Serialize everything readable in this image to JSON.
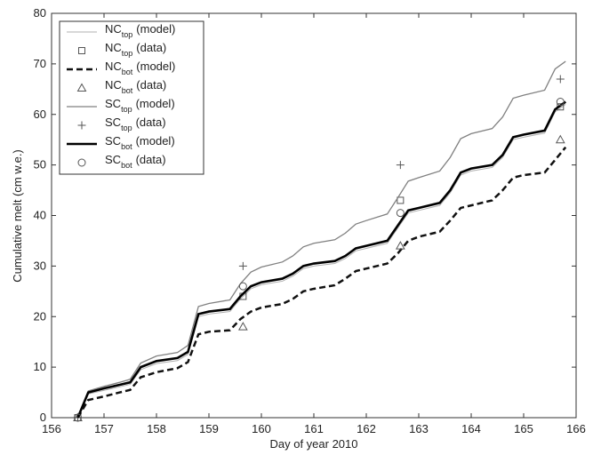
{
  "chart_data": {
    "type": "line",
    "x_label": "Day of year 2010",
    "y_label": "Cumulative melt (cm w.e.)",
    "xlim": [
      156,
      166
    ],
    "xticks": [
      156,
      157,
      158,
      159,
      160,
      161,
      162,
      163,
      164,
      165,
      166
    ],
    "ylim": [
      0,
      80
    ],
    "yticks": [
      0,
      10,
      20,
      30,
      40,
      50,
      60,
      70,
      80
    ],
    "grid": false,
    "legend": "upper left",
    "series": [
      {
        "name": "NC",
        "subscript": "top",
        "suffix": "(model)",
        "style": "line",
        "color": "#b0b0b0",
        "width": 1,
        "dash": false,
        "x": [
          156.5,
          156.7,
          157,
          157.3,
          157.5,
          157.7,
          158,
          158.4,
          158.6,
          158.8,
          159,
          159.4,
          159.6,
          159.8,
          160,
          160.4,
          160.6,
          160.8,
          161,
          161.4,
          161.6,
          161.8,
          162,
          162.4,
          162.6,
          162.8,
          163,
          163.4,
          163.6,
          163.8,
          164,
          164.4,
          164.6,
          164.8,
          165,
          165.4,
          165.6,
          165.8
        ],
        "values": [
          0,
          4.7,
          5.4,
          6.1,
          6.6,
          9.5,
          10.7,
          11.3,
          12.5,
          20,
          20.5,
          21,
          23.5,
          25.5,
          26.3,
          27,
          28,
          29.5,
          30,
          30.5,
          31.5,
          33,
          33.5,
          34.5,
          37.5,
          40.5,
          41,
          42,
          44.5,
          48,
          48.8,
          49.5,
          51.5,
          55,
          55.5,
          56.3,
          60.5,
          62
        ]
      },
      {
        "name": "NC",
        "subscript": "top",
        "suffix": "(data)",
        "style": "square",
        "color": "#555555",
        "x": [
          156.5,
          159.65,
          162.65,
          165.7
        ],
        "values": [
          0,
          24,
          43,
          61.5
        ]
      },
      {
        "name": "NC",
        "subscript": "bot",
        "suffix": "(model)",
        "style": "line",
        "color": "#111111",
        "width": 2.5,
        "dash": true,
        "x": [
          156.5,
          156.7,
          157,
          157.3,
          157.5,
          157.7,
          158,
          158.4,
          158.6,
          158.8,
          159,
          159.4,
          159.6,
          159.8,
          160,
          160.4,
          160.6,
          160.8,
          161,
          161.4,
          161.6,
          161.8,
          162,
          162.4,
          162.6,
          162.8,
          163,
          163.4,
          163.6,
          163.8,
          164,
          164.4,
          164.6,
          164.8,
          165,
          165.4,
          165.6,
          165.8
        ],
        "values": [
          0,
          3.5,
          4.2,
          5,
          5.5,
          8,
          9,
          9.8,
          11,
          16.5,
          17,
          17.3,
          19.5,
          21,
          21.8,
          22.5,
          23.5,
          25,
          25.5,
          26.2,
          27.5,
          29,
          29.5,
          30.5,
          32.5,
          35,
          35.8,
          36.8,
          39,
          41.5,
          42,
          43,
          45,
          47.5,
          48,
          48.5,
          51,
          53.5
        ]
      },
      {
        "name": "NC",
        "subscript": "bot",
        "suffix": "(data)",
        "style": "triangle",
        "color": "#555555",
        "x": [
          156.5,
          159.65,
          162.65,
          165.7
        ],
        "values": [
          0,
          18,
          34,
          55
        ]
      },
      {
        "name": "SC",
        "subscript": "top",
        "suffix": "(model)",
        "style": "line",
        "color": "#808080",
        "width": 1.3,
        "dash": false,
        "x": [
          156.5,
          156.7,
          157,
          157.3,
          157.5,
          157.7,
          158,
          158.4,
          158.6,
          158.8,
          159,
          159.4,
          159.6,
          159.8,
          160,
          160.4,
          160.6,
          160.8,
          161,
          161.4,
          161.6,
          161.8,
          162,
          162.4,
          162.6,
          162.8,
          163,
          163.4,
          163.6,
          163.8,
          164,
          164.4,
          164.6,
          164.8,
          165,
          165.4,
          165.6,
          165.8
        ],
        "values": [
          0,
          5.3,
          6.2,
          7,
          7.6,
          10.8,
          12.2,
          12.9,
          14.3,
          22,
          22.6,
          23.3,
          26.5,
          28.8,
          29.8,
          30.8,
          32,
          33.8,
          34.5,
          35.2,
          36.5,
          38.3,
          39,
          40.3,
          43.5,
          46.8,
          47.5,
          48.8,
          51.5,
          55.2,
          56.2,
          57.2,
          59.5,
          63.2,
          63.8,
          64.8,
          69,
          70.5
        ]
      },
      {
        "name": "SC",
        "subscript": "top",
        "suffix": "(data)",
        "style": "plus",
        "color": "#555555",
        "x": [
          156.5,
          159.65,
          162.65,
          165.7
        ],
        "values": [
          0,
          30,
          50,
          67
        ]
      },
      {
        "name": "SC",
        "subscript": "bot",
        "suffix": "(model)",
        "style": "line",
        "color": "#000000",
        "width": 2.6,
        "dash": false,
        "x": [
          156.5,
          156.7,
          157,
          157.3,
          157.5,
          157.7,
          158,
          158.4,
          158.6,
          158.8,
          159,
          159.4,
          159.6,
          159.8,
          160,
          160.4,
          160.6,
          160.8,
          161,
          161.4,
          161.6,
          161.8,
          162,
          162.4,
          162.6,
          162.8,
          163,
          163.4,
          163.6,
          163.8,
          164,
          164.4,
          164.6,
          164.8,
          165,
          165.4,
          165.6,
          165.8
        ],
        "values": [
          0,
          5,
          5.8,
          6.5,
          7,
          10,
          11.2,
          11.8,
          13,
          20.5,
          21,
          21.5,
          24,
          26,
          26.8,
          27.5,
          28.5,
          30,
          30.5,
          31,
          32,
          33.5,
          34,
          35,
          38,
          41,
          41.5,
          42.5,
          45,
          48.5,
          49.3,
          50,
          52,
          55.5,
          56,
          56.8,
          61,
          62.5
        ]
      },
      {
        "name": "SC",
        "subscript": "bot",
        "suffix": "(data)",
        "style": "circle",
        "color": "#555555",
        "x": [
          156.5,
          159.65,
          162.65,
          165.7
        ],
        "values": [
          0,
          26,
          40.5,
          62.5
        ]
      }
    ]
  }
}
